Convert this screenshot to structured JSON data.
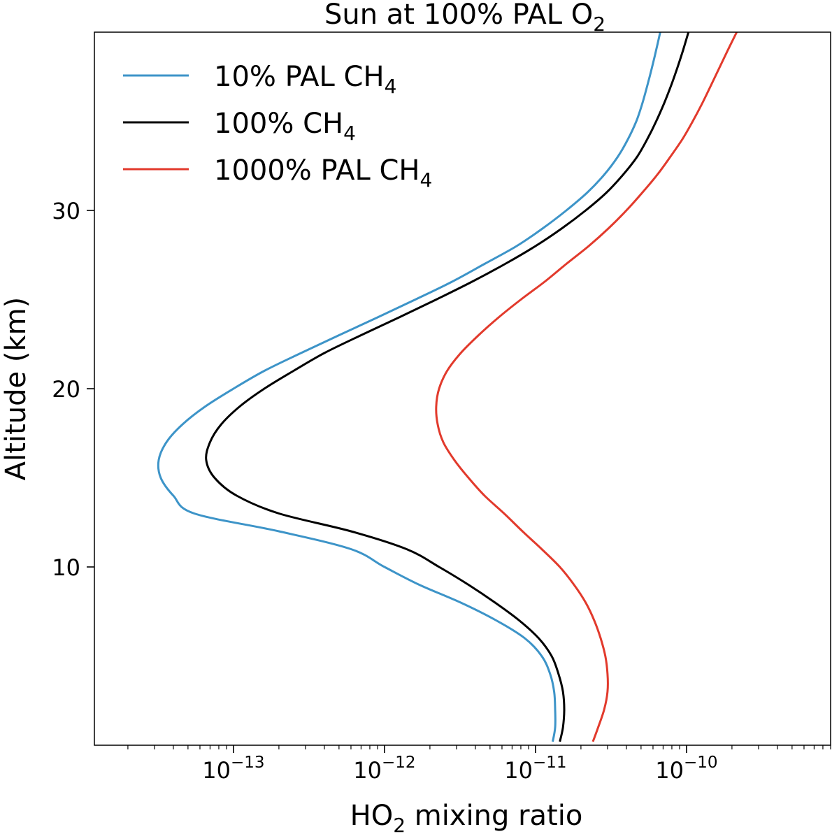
{
  "chart_data": {
    "type": "line",
    "title": "Sun at 100% PAL O",
    "title_sub": "2",
    "xlabel": "HO",
    "xlabel_sub": "2",
    "xlabel_rest": " mixing ratio",
    "ylabel": "Altitude (km)",
    "x_scale": "log",
    "xlim": [
      1.2e-14,
      9e-10
    ],
    "ylim": [
      0,
      40
    ],
    "x_ticks": [
      {
        "base": "10",
        "exp": "−13",
        "value": 1e-13
      },
      {
        "base": "10",
        "exp": "−12",
        "value": 1e-12
      },
      {
        "base": "10",
        "exp": "−11",
        "value": 1e-11
      },
      {
        "base": "10",
        "exp": "−10",
        "value": 1e-10
      }
    ],
    "y_ticks": [
      {
        "label": "10",
        "value": 10
      },
      {
        "label": "20",
        "value": 20
      },
      {
        "label": "30",
        "value": 30
      }
    ],
    "legend_position": "top-left",
    "series": [
      {
        "name": "10% PAL CH",
        "name_sub": "4",
        "color": "#3d94c8",
        "y": [
          0.2,
          1,
          2,
          3,
          4,
          5,
          6,
          7,
          8,
          9,
          10,
          11,
          12,
          13,
          14,
          15,
          16,
          17,
          18,
          19,
          20,
          21,
          22,
          23,
          24,
          25,
          26,
          27,
          28,
          29,
          30,
          31,
          32,
          33,
          34,
          35,
          36,
          37,
          38,
          39,
          40
        ],
        "x": [
          1.3e-11,
          1.35e-11,
          1.35e-11,
          1.33e-11,
          1.25e-11,
          1.1e-11,
          8.5e-12,
          5.5e-12,
          3.2e-12,
          1.7e-12,
          1e-12,
          6e-13,
          2e-13,
          5.5e-14,
          4e-14,
          3.3e-14,
          3.2e-14,
          3.6e-14,
          4.6e-14,
          6.5e-14,
          1e-13,
          1.6e-13,
          2.8e-13,
          5e-13,
          9e-13,
          1.6e-12,
          2.8e-12,
          4.6e-12,
          7.5e-12,
          1.12e-11,
          1.6e-11,
          2.2e-11,
          2.85e-11,
          3.5e-11,
          4.1e-11,
          4.65e-11,
          5.1e-11,
          5.5e-11,
          5.9e-11,
          6.3e-11,
          6.7e-11
        ]
      },
      {
        "name": "100% CH",
        "name_sub": "4",
        "color": "#000000",
        "y": [
          0.2,
          1,
          2,
          3,
          4,
          5,
          6,
          7,
          8,
          9,
          10,
          11,
          12,
          13,
          14,
          15,
          16,
          17,
          18,
          19,
          20,
          21,
          22,
          23,
          24,
          25,
          26,
          27,
          28,
          29,
          30,
          31,
          32,
          33,
          34,
          35,
          36,
          37,
          38,
          39,
          40
        ],
        "x": [
          1.45e-11,
          1.52e-11,
          1.55e-11,
          1.52e-11,
          1.42e-11,
          1.28e-11,
          1.05e-11,
          7.8e-12,
          5.4e-12,
          3.6e-12,
          2.3e-12,
          1.4e-12,
          6e-13,
          2e-13,
          1.05e-13,
          7.5e-14,
          6.6e-14,
          7e-14,
          8.3e-14,
          1.1e-13,
          1.6e-13,
          2.5e-13,
          4e-13,
          7e-13,
          1.25e-12,
          2.2e-12,
          3.8e-12,
          6.3e-12,
          1e-11,
          1.5e-11,
          2.15e-11,
          2.95e-11,
          3.8e-11,
          4.7e-11,
          5.5e-11,
          6.3e-11,
          7.1e-11,
          7.9e-11,
          8.7e-11,
          9.5e-11,
          1.03e-10
        ]
      },
      {
        "name": "1000% PAL CH",
        "name_sub": "4",
        "color": "#e23a2c",
        "y": [
          0.2,
          1,
          2,
          3,
          4,
          5,
          6,
          7,
          8,
          9,
          10,
          11,
          12,
          13,
          14,
          15,
          16,
          17,
          18,
          19,
          20,
          21,
          22,
          23,
          24,
          25,
          26,
          27,
          28,
          29,
          30,
          31,
          32,
          33,
          34,
          35,
          36,
          37,
          38,
          39,
          40
        ],
        "x": [
          2.4e-11,
          2.6e-11,
          2.85e-11,
          3e-11,
          3e-11,
          2.9e-11,
          2.7e-11,
          2.45e-11,
          2.15e-11,
          1.8e-11,
          1.45e-11,
          1.1e-11,
          8.2e-12,
          6.2e-12,
          4.6e-12,
          3.6e-12,
          2.9e-12,
          2.45e-12,
          2.25e-12,
          2.2e-12,
          2.3e-12,
          2.6e-12,
          3.2e-12,
          4.2e-12,
          5.7e-12,
          8e-12,
          1.15e-11,
          1.6e-11,
          2.25e-11,
          3.05e-11,
          4e-11,
          5.1e-11,
          6.4e-11,
          7.8e-11,
          9.4e-11,
          1.1e-10,
          1.27e-10,
          1.45e-10,
          1.65e-10,
          1.88e-10,
          2.15e-10
        ]
      }
    ]
  }
}
